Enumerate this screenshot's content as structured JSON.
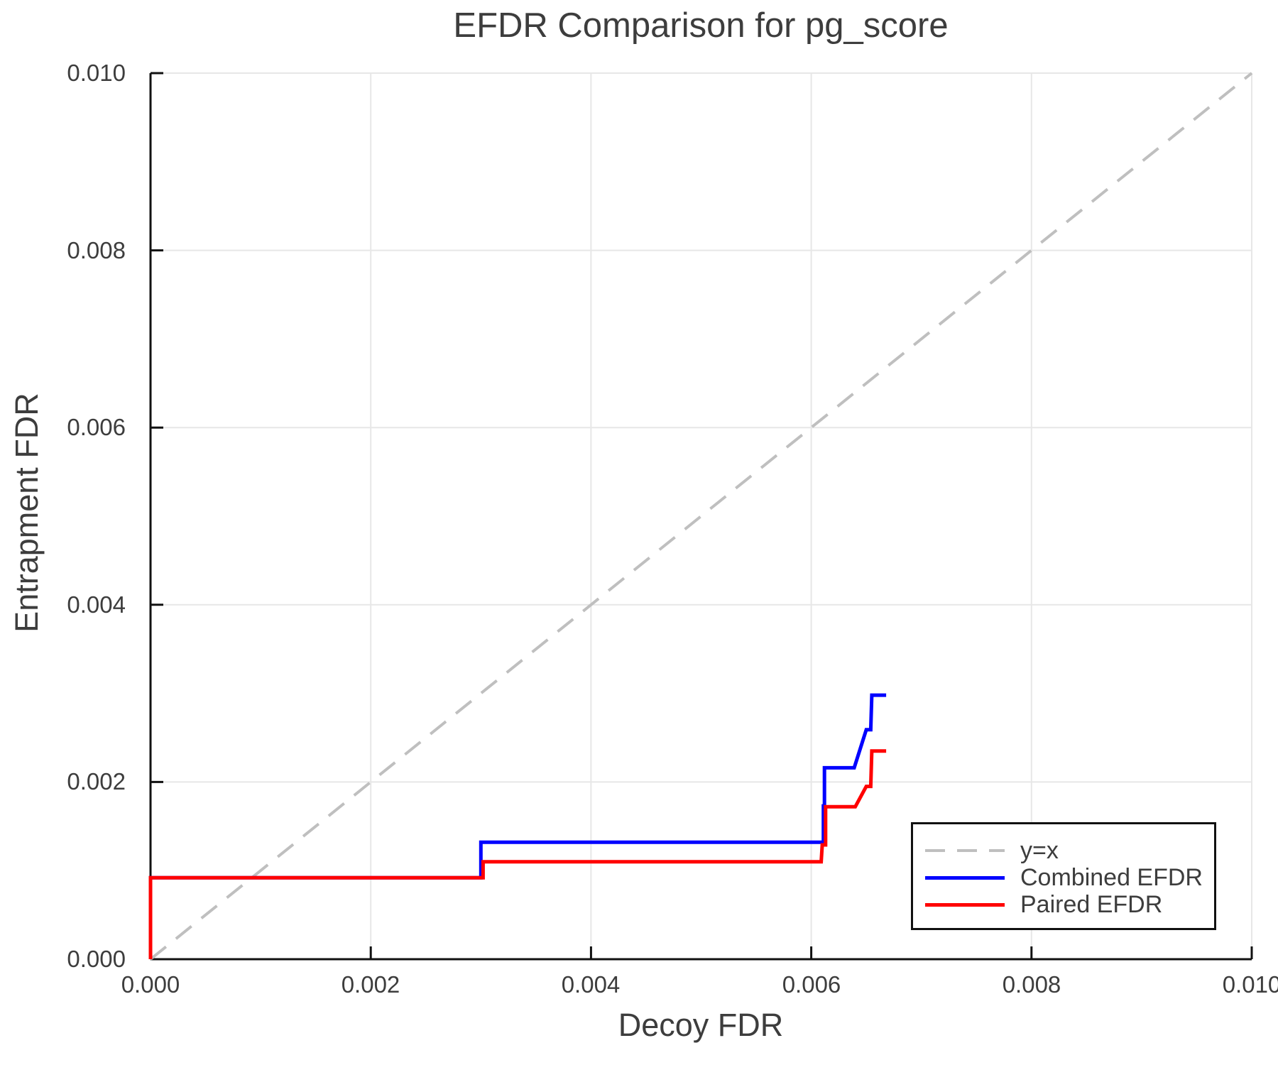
{
  "colors": {
    "background": "#ffffff",
    "text": "#3d3d3d",
    "grid": "#e7e7e7",
    "axis": "#111111",
    "reference_line": "#bfbfbf",
    "combined": "#0000ff",
    "paired": "#ff0000"
  },
  "chart_data": {
    "type": "line",
    "title": "EFDR Comparison for pg_score",
    "xlabel": "Decoy FDR",
    "ylabel": "Entrapment FDR",
    "xlim": [
      0.0,
      0.01
    ],
    "ylim": [
      0.0,
      0.01
    ],
    "x_ticks": [
      0.0,
      0.002,
      0.004,
      0.006,
      0.008,
      0.01
    ],
    "x_tick_labels": [
      "0.000",
      "0.002",
      "0.004",
      "0.006",
      "0.008",
      "0.010"
    ],
    "y_ticks": [
      0.0,
      0.002,
      0.004,
      0.006,
      0.008,
      0.01
    ],
    "y_tick_labels": [
      "0.000",
      "0.002",
      "0.004",
      "0.006",
      "0.008",
      "0.010"
    ],
    "grid": true,
    "legend_position": "lower right",
    "series": [
      {
        "name": "y=x",
        "style": "dashed",
        "color": "#bfbfbf",
        "width": 4,
        "points": [
          [
            0.0,
            0.0
          ],
          [
            0.01,
            0.01
          ]
        ]
      },
      {
        "name": "Combined EFDR",
        "style": "solid",
        "color": "#0000ff",
        "width": 5,
        "points": [
          [
            0.0,
            0.0
          ],
          [
            0.0,
            0.00092
          ],
          [
            0.003,
            0.00092
          ],
          [
            0.003,
            0.00132
          ],
          [
            0.00611,
            0.00132
          ],
          [
            0.00611,
            0.00173
          ],
          [
            0.00612,
            0.00173
          ],
          [
            0.00612,
            0.00216
          ],
          [
            0.00639,
            0.00216
          ],
          [
            0.0065,
            0.00259
          ],
          [
            0.00654,
            0.00259
          ],
          [
            0.00655,
            0.00298
          ],
          [
            0.00668,
            0.00298
          ]
        ]
      },
      {
        "name": "Paired EFDR",
        "style": "solid",
        "color": "#ff0000",
        "width": 5,
        "points": [
          [
            0.0,
            0.0
          ],
          [
            0.0,
            0.00092
          ],
          [
            0.00302,
            0.00092
          ],
          [
            0.00302,
            0.0011
          ],
          [
            0.00609,
            0.0011
          ],
          [
            0.0061,
            0.00129
          ],
          [
            0.00613,
            0.00129
          ],
          [
            0.00613,
            0.00172
          ],
          [
            0.0064,
            0.00172
          ],
          [
            0.0065,
            0.00195
          ],
          [
            0.00654,
            0.00195
          ],
          [
            0.00655,
            0.00235
          ],
          [
            0.00668,
            0.00235
          ]
        ]
      }
    ]
  },
  "legend": {
    "items": [
      "y=x",
      "Combined EFDR",
      "Paired EFDR"
    ]
  }
}
